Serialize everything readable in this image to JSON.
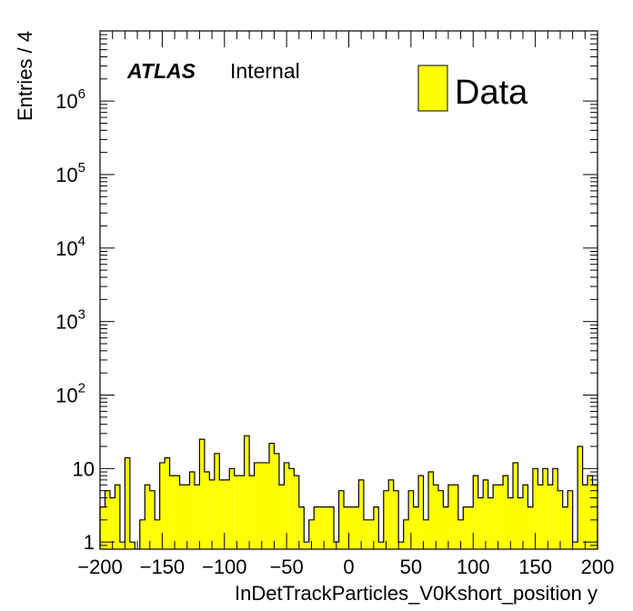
{
  "chart_data": {
    "type": "bar",
    "hist_style": "filled-step",
    "xlabel": "InDetTrackParticles_V0Kshort_position y",
    "ylabel": "Entries / 4",
    "xlim": [
      -200,
      200
    ],
    "ylim": [
      0.8,
      9000000
    ],
    "yscale": "log",
    "grid": false,
    "bin_width": 4,
    "fill_color": "#ffff00",
    "line_color": "#000000",
    "x_ticks": [
      -200,
      -150,
      -100,
      -50,
      0,
      50,
      100,
      150,
      200
    ],
    "x_tick_labels": [
      "−200",
      "−150",
      "−100",
      "−50",
      "0",
      "50",
      "100",
      "150",
      "200"
    ],
    "y_ticks": [
      {
        "value": 1,
        "base": "1",
        "exp": ""
      },
      {
        "value": 10,
        "base": "10",
        "exp": ""
      },
      {
        "value": 100,
        "base": "10",
        "exp": "2"
      },
      {
        "value": 1000,
        "base": "10",
        "exp": "3"
      },
      {
        "value": 10000,
        "base": "10",
        "exp": "4"
      },
      {
        "value": 100000,
        "base": "10",
        "exp": "5"
      },
      {
        "value": 1000000,
        "base": "10",
        "exp": "6"
      }
    ],
    "experiment_label": "ATLAS",
    "status_label": "Internal",
    "series": [
      {
        "name": "Data",
        "bin_low_edges": [
          -200,
          -196,
          -192,
          -188,
          -184,
          -180,
          -176,
          -172,
          -168,
          -164,
          -160,
          -156,
          -152,
          -148,
          -144,
          -140,
          -136,
          -132,
          -128,
          -124,
          -120,
          -116,
          -112,
          -108,
          -104,
          -100,
          -96,
          -92,
          -88,
          -84,
          -80,
          -76,
          -72,
          -68,
          -64,
          -60,
          -56,
          -52,
          -48,
          -44,
          -40,
          -36,
          -32,
          -28,
          -24,
          -20,
          -16,
          -12,
          -8,
          -4,
          0,
          4,
          8,
          12,
          16,
          20,
          24,
          28,
          32,
          36,
          40,
          44,
          48,
          52,
          56,
          60,
          64,
          68,
          72,
          76,
          80,
          84,
          88,
          92,
          96,
          100,
          104,
          108,
          112,
          116,
          120,
          124,
          128,
          132,
          136,
          140,
          144,
          148,
          152,
          156,
          160,
          164,
          168,
          172,
          176,
          180,
          184,
          188,
          192,
          196
        ],
        "values": [
          3,
          5,
          4,
          6,
          1,
          14,
          1,
          0,
          2,
          6,
          5,
          2,
          12,
          14,
          8,
          8,
          6,
          6,
          9,
          6,
          25,
          9,
          7,
          16,
          7,
          7,
          10,
          8,
          8,
          28,
          8,
          12,
          12,
          12,
          22,
          16,
          6,
          12,
          10,
          8,
          3,
          1,
          2,
          3,
          3,
          3,
          3,
          1,
          5,
          3,
          3,
          3,
          7,
          2,
          2,
          3,
          1,
          5,
          7,
          5,
          1,
          2,
          5,
          3,
          8,
          2,
          9,
          6,
          5,
          3,
          6,
          6,
          2,
          3,
          3,
          8,
          4,
          7,
          4,
          6,
          6,
          8,
          4,
          12,
          4,
          6,
          3,
          10,
          6,
          10,
          6,
          10,
          5,
          3,
          5,
          1,
          20,
          6,
          8,
          6
        ]
      }
    ]
  }
}
